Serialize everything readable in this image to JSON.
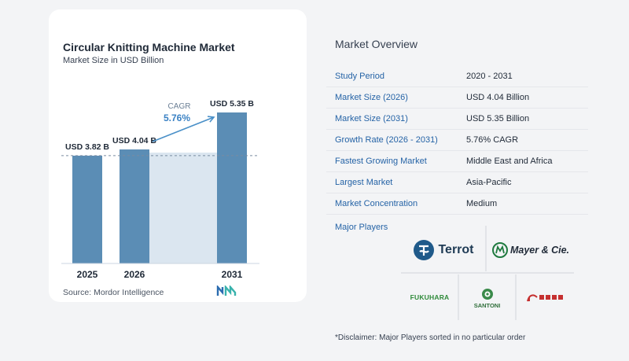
{
  "chart": {
    "title": "Circular Knitting Machine Market",
    "subtitle": "Market Size in USD Billion",
    "source": "Source:  Mordor Intelligence"
  },
  "chart_data": {
    "type": "bar",
    "categories": [
      "2025",
      "2026",
      "2031"
    ],
    "values": [
      3.82,
      4.04,
      5.35
    ],
    "data_labels": [
      "USD 3.82 B",
      "USD 4.04 B",
      "USD 5.35 B"
    ],
    "annotation": {
      "label": "CAGR",
      "value": "5.76%"
    },
    "title": "Circular Knitting Machine Market",
    "subtitle": "Market Size in USD Billion",
    "ylim": [
      0,
      5.35
    ],
    "grid": false,
    "reference_line": 3.82,
    "colors": {
      "bar": "#5b8db5",
      "bar_light": "#dbe6f0",
      "accent": "#4a90c8"
    }
  },
  "overview": {
    "title": "Market Overview",
    "rows": [
      {
        "key": "Study Period",
        "value": "2020 - 2031"
      },
      {
        "key": "Market Size (2026)",
        "value": "USD 4.04 Billion"
      },
      {
        "key": "Market Size (2031)",
        "value": "USD 5.35 Billion"
      },
      {
        "key": "Growth Rate (2026 - 2031)",
        "value": "5.76% CAGR"
      },
      {
        "key": "Fastest Growing Market",
        "value": "Middle East and Africa"
      },
      {
        "key": "Largest Market",
        "value": "Asia-Pacific"
      },
      {
        "key": "Market Concentration",
        "value": "Medium"
      }
    ],
    "players_title": "Major Players",
    "players": [
      "Terrot",
      "Mayer & Cie.",
      "FUKUHARA",
      "SANTONI",
      "Pailung"
    ],
    "disclaimer": "*Disclaimer: Major Players sorted in no particular order"
  }
}
